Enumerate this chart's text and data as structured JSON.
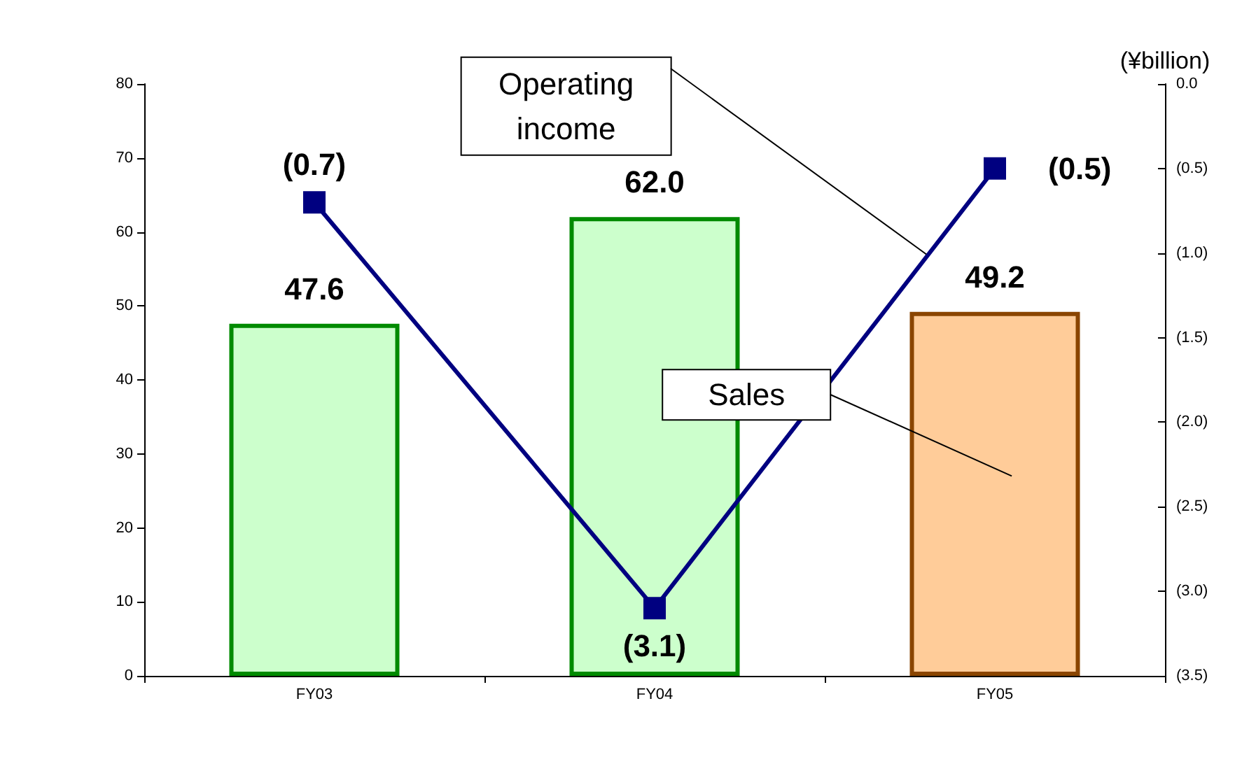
{
  "chart_data": {
    "type": "bar",
    "categories": [
      "FY03",
      "FY04",
      "FY05"
    ],
    "series": [
      {
        "name": "Sales",
        "colors": [
          "#ccffcc",
          "#ccffcc",
          "#ffcc99"
        ],
        "values": [
          47.6,
          62.0,
          49.2
        ],
        "value_labels": [
          "47.6",
          "62.0",
          "49.2"
        ]
      },
      {
        "name": "Operating income",
        "type": "line",
        "axis": "y2",
        "color": "#000080",
        "values": [
          -0.7,
          -3.1,
          -0.5
        ],
        "value_labels": [
          "(0.7)",
          "(3.1)",
          "(0.5)"
        ]
      }
    ],
    "y2label": "(¥billion)",
    "ylim": [
      0,
      80
    ],
    "yticks": [
      0,
      10,
      20,
      30,
      40,
      50,
      60,
      70,
      80
    ],
    "y2lim": [
      -3.5,
      0
    ],
    "y2ticks": [
      {
        "value": -3.5,
        "label": "(3.5)"
      },
      {
        "value": -3.0,
        "label": "(3.0)"
      },
      {
        "value": -2.5,
        "label": "(2.5)"
      },
      {
        "value": -2.0,
        "label": "(2.0)"
      },
      {
        "value": -1.5,
        "label": "(1.5)"
      },
      {
        "value": -1.0,
        "label": "(1.0)"
      },
      {
        "value": -0.5,
        "label": "(0.5)"
      },
      {
        "value": 0,
        "label": "0.0"
      }
    ],
    "grid": false,
    "legend": false,
    "marker": "square",
    "line_style": "solid"
  }
}
